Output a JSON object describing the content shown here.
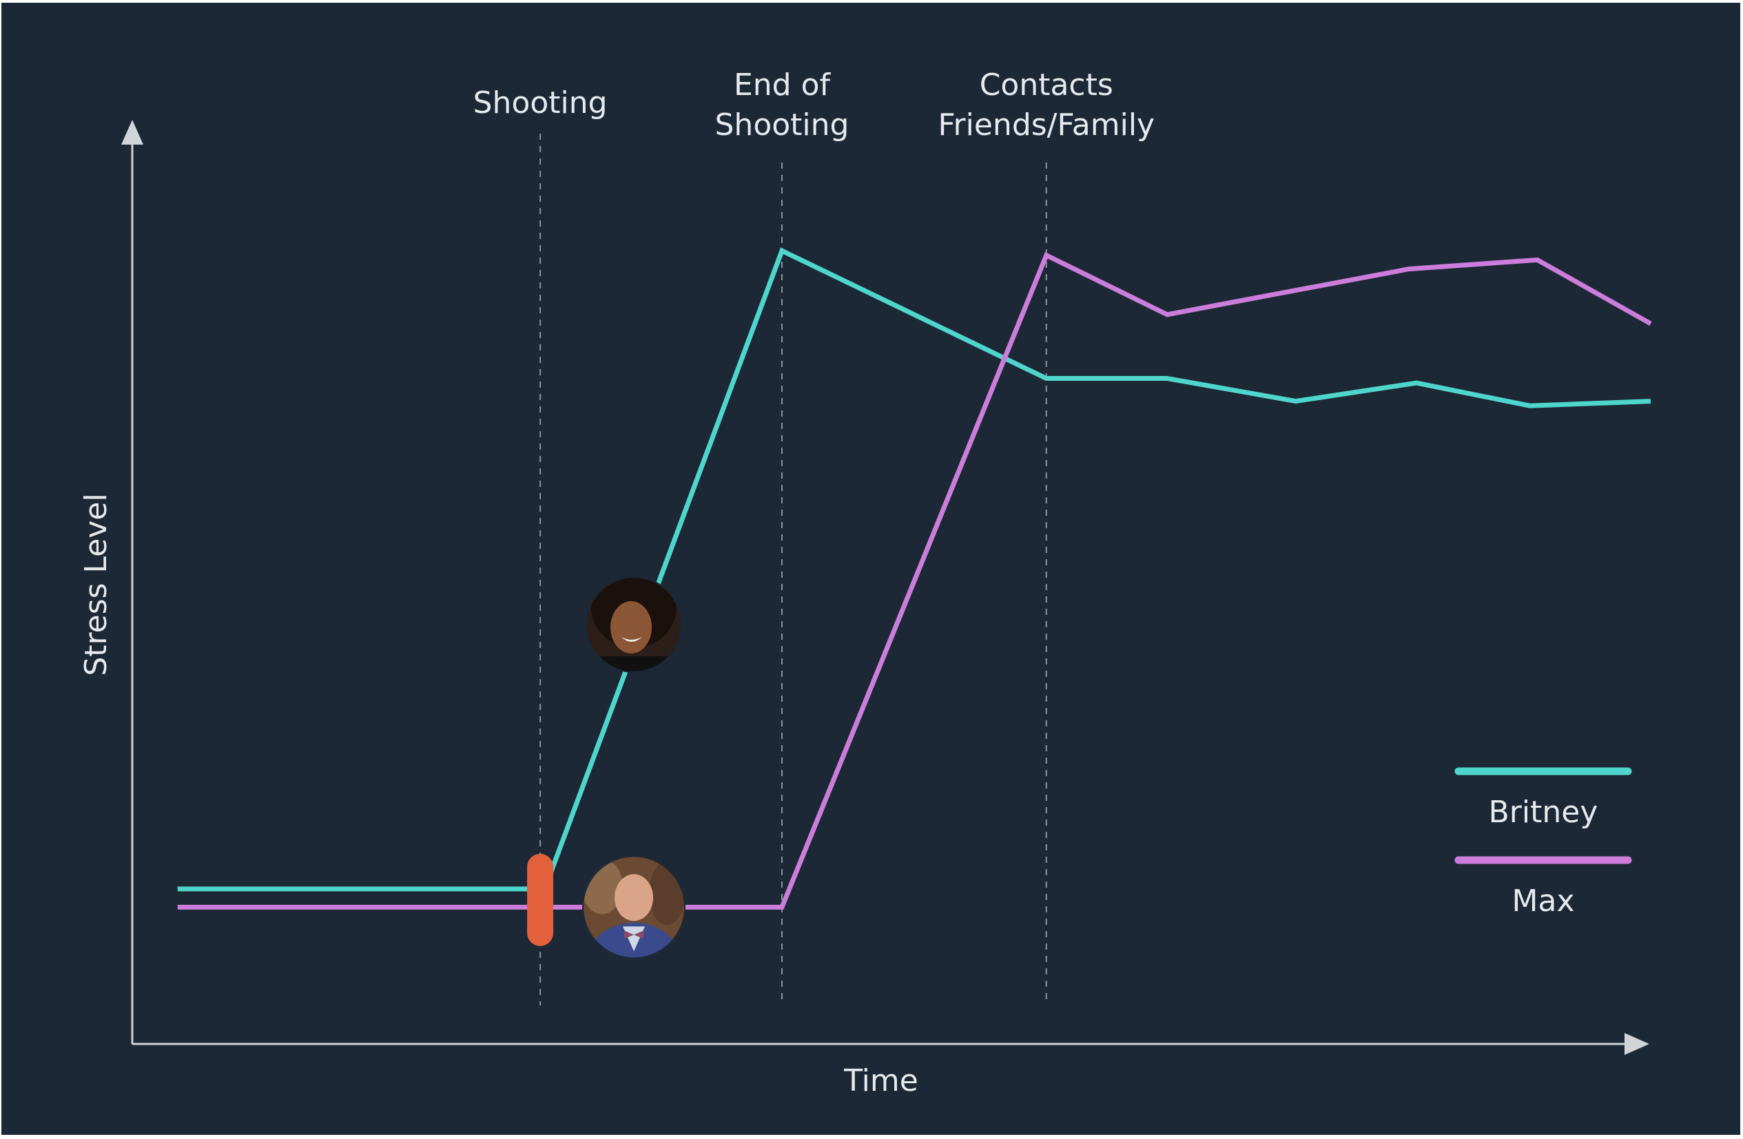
{
  "colors": {
    "background": "#1c2835",
    "axis": "#d0d5da",
    "event_line": "#8a949e",
    "britney": "#4fd6cc",
    "max": "#cc7ddb",
    "shooting_marker": "#e2613a"
  },
  "chart_data": {
    "type": "line",
    "title": "",
    "xlabel": "Time",
    "ylabel": "Stress Level",
    "xlim": [
      0,
      100
    ],
    "ylim": [
      0,
      100
    ],
    "grid": false,
    "legend_position": "bottom-right",
    "events": [
      {
        "label": [
          "Shooting"
        ],
        "x": 27
      },
      {
        "label": [
          "End of",
          "Shooting"
        ],
        "x": 43
      },
      {
        "label": [
          "Contacts",
          "Friends/Family"
        ],
        "x": 60.5
      }
    ],
    "series": [
      {
        "name": "Britney",
        "color": "#4fd6cc",
        "points": [
          [
            3,
            17
          ],
          [
            27.3,
            17
          ],
          [
            43,
            87
          ],
          [
            60.5,
            73
          ],
          [
            68.5,
            73
          ],
          [
            77,
            70.5
          ],
          [
            85,
            72.5
          ],
          [
            92.5,
            70
          ],
          [
            100.5,
            70.5
          ]
        ]
      },
      {
        "name": "Max",
        "color": "#cc7ddb",
        "points": [
          [
            3,
            15
          ],
          [
            43,
            15
          ],
          [
            60.5,
            86.5
          ],
          [
            68.5,
            80
          ],
          [
            84.5,
            85
          ],
          [
            93,
            86
          ],
          [
            100.5,
            79
          ]
        ]
      }
    ],
    "markers": [
      {
        "type": "shooting-marker",
        "x": 27,
        "y": 15.8
      },
      {
        "type": "avatar",
        "person": "Britney",
        "x": 33.2,
        "y": 46
      },
      {
        "type": "avatar",
        "person": "Max",
        "x": 33.2,
        "y": 15
      }
    ]
  }
}
